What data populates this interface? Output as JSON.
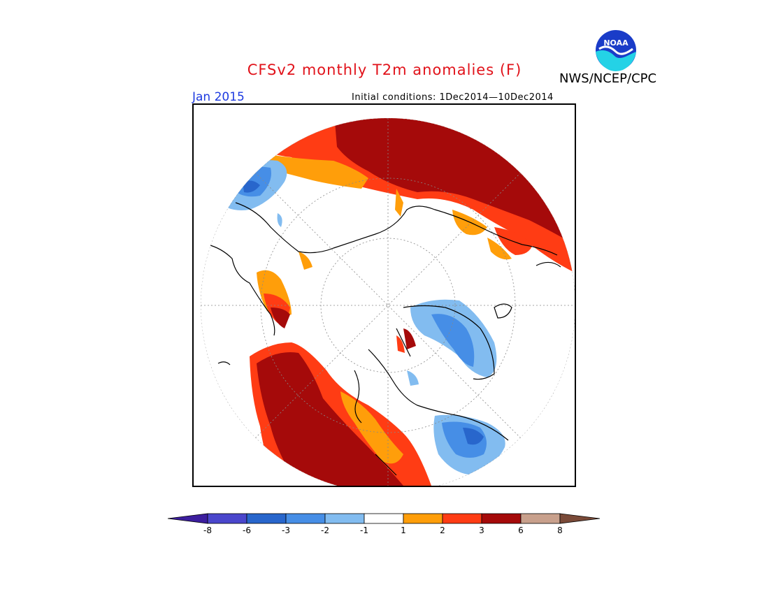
{
  "header": {
    "title": "CFSv2 monthly T2m anomalies (F)",
    "agency": "NWS/NCEP/CPC",
    "month": "Jan 2015",
    "initial_conditions": "Initial conditions: 1Dec2014—10Dec2014",
    "logo_text": "NOAA"
  },
  "colorbar": {
    "labels": [
      "-8",
      "-6",
      "-3",
      "-2",
      "-1",
      "1",
      "2",
      "3",
      "6",
      "8"
    ],
    "colors": [
      "#3c1e9e",
      "#4a46cc",
      "#2866cc",
      "#468ee6",
      "#82bcf0",
      "#ffffff",
      "#ff9e0a",
      "#ff3c14",
      "#a50a0a",
      "#c8a08c",
      "#7a4a38"
    ]
  },
  "colors": {
    "title": "#e1121a",
    "month": "#1d3ae0",
    "dark_red": "#a50a0a",
    "red": "#ff3c14",
    "orange": "#ff9e0a",
    "light_blue": "#82bcf0",
    "blue": "#468ee6",
    "dark_blue": "#2866cc"
  }
}
